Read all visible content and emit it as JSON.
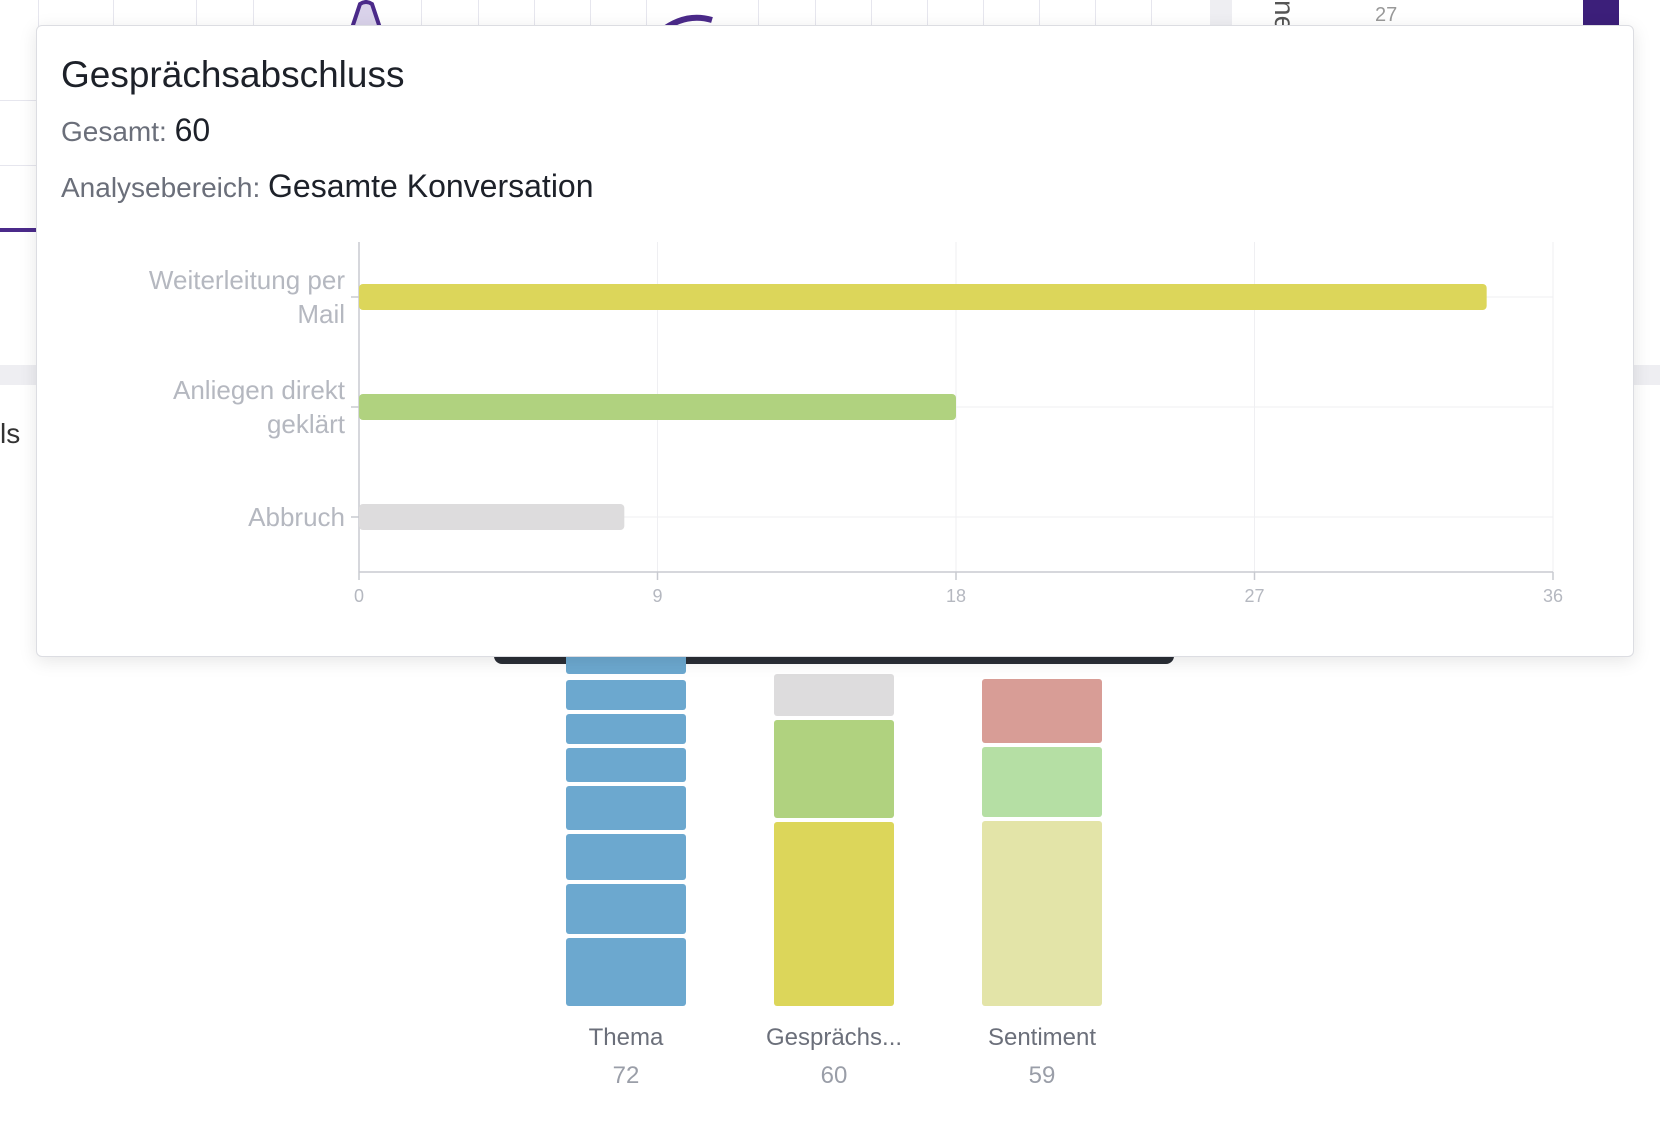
{
  "popover": {
    "title": "Gesprächsabschluss",
    "total_label": "Gesamt:",
    "total_value": "60",
    "scope_label": "Analysebereich:",
    "scope_value": "Gesamte Konversation"
  },
  "chart_data": {
    "type": "bar",
    "orientation": "horizontal",
    "categories": [
      "Weiterleitung per Mail",
      "Anliegen direkt geklärt",
      "Abbruch"
    ],
    "category_label_lines": [
      [
        "Weiterleitung per",
        "Mail"
      ],
      [
        "Anliegen direkt",
        "geklärt"
      ],
      [
        "Abbruch"
      ]
    ],
    "values": [
      34,
      18,
      8
    ],
    "colors": [
      "#dcd65a",
      "#b0d27f",
      "#dddcdd"
    ],
    "x_ticks": [
      "0",
      "9",
      "18",
      "27",
      "36"
    ],
    "xlim": [
      0,
      36
    ],
    "grid": true
  },
  "background": {
    "left_partial_text": "ls",
    "right_axis_tick": "27",
    "right_partial_vertical_text": "ne",
    "columns": [
      {
        "label": "Thema",
        "count": "72",
        "color": "#6ca8cf"
      },
      {
        "label": "Gesprächs...",
        "count": "60",
        "colors": [
          "#dddcdd",
          "#b0d27f",
          "#dcd65a"
        ]
      },
      {
        "label": "Sentiment",
        "count": "59",
        "colors": [
          "#d89d96",
          "#b5dfa4",
          "#e3e4a8"
        ]
      }
    ]
  }
}
